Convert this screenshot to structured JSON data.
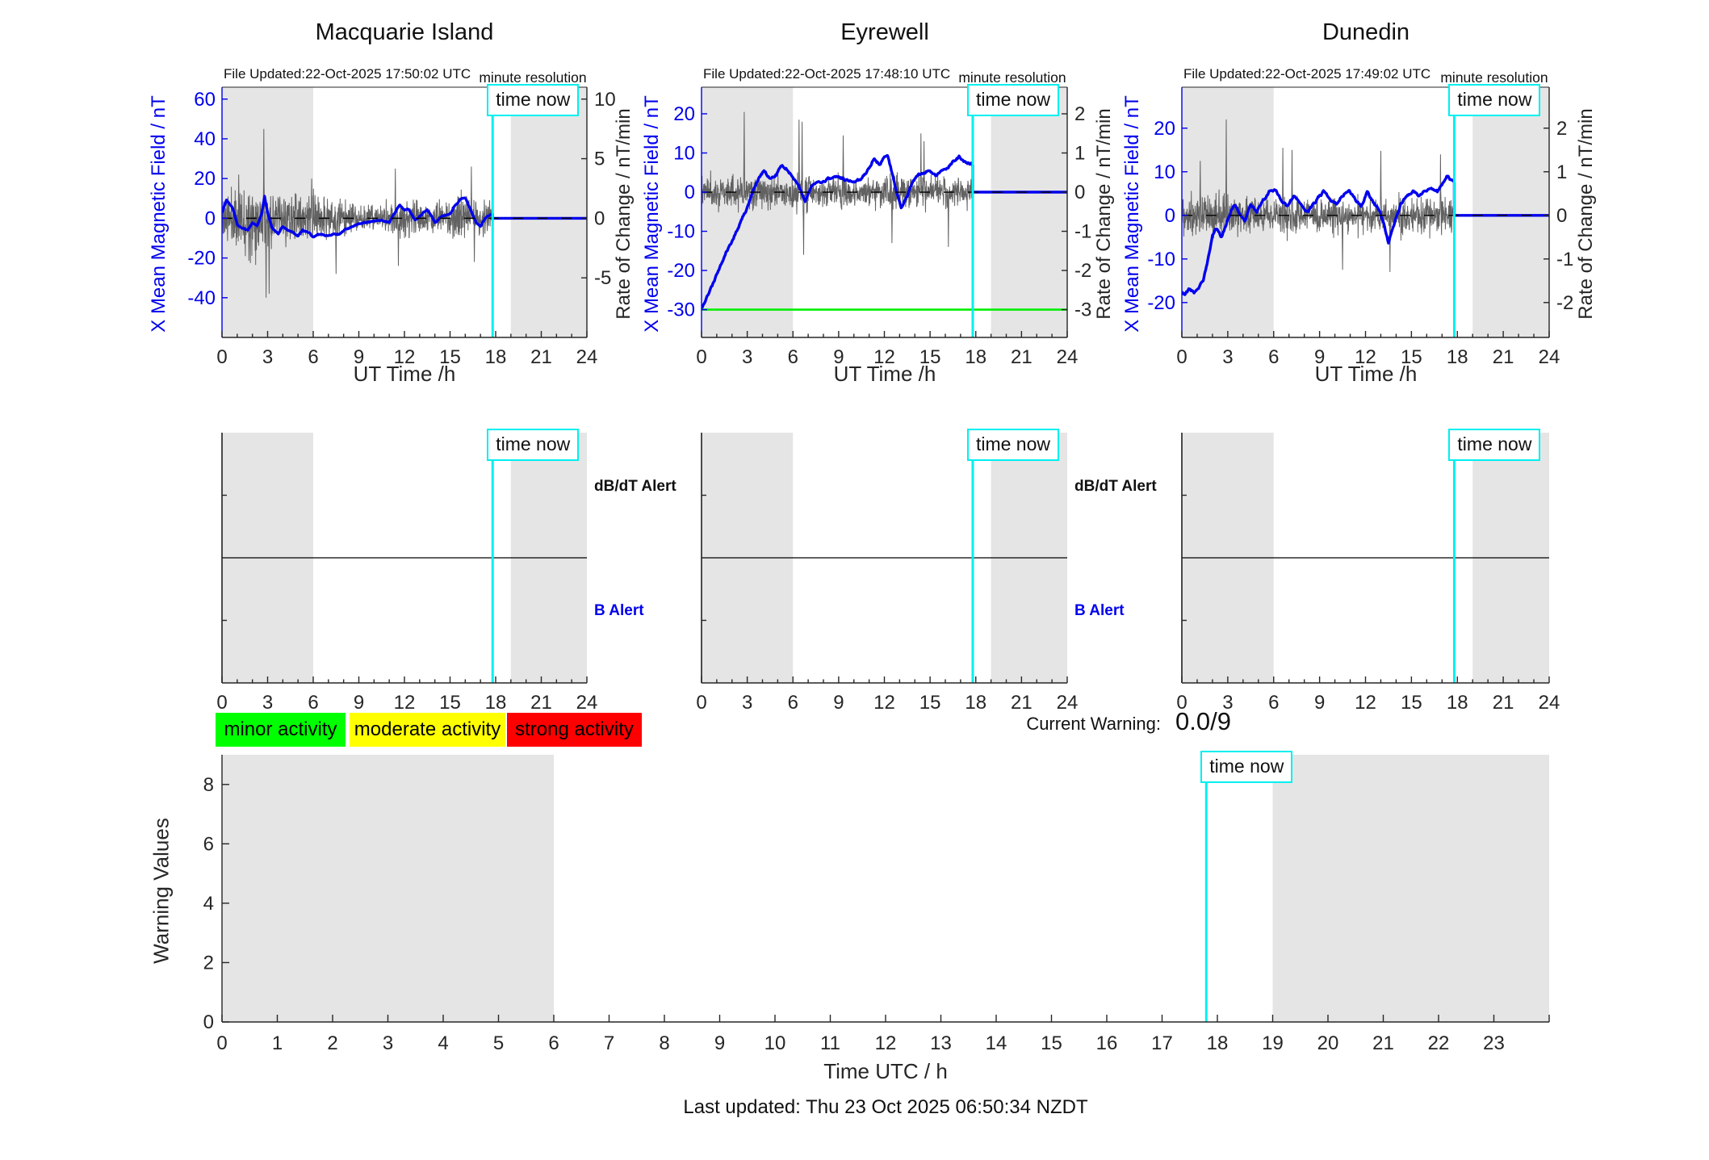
{
  "page": {
    "time_now_label": "time now",
    "resolution_note": "minute resolution",
    "current_warning_label": "Current Warning:",
    "current_warning_value": "0.0/9",
    "last_updated": "Last updated: Thu 23 Oct 2025 06:50:34 NZDT",
    "time_now_hours": 17.8
  },
  "alerts": {
    "db_dt_label": "dB/dT Alert",
    "b_label": "B Alert"
  },
  "legend": {
    "items": [
      {
        "label": "minor activity",
        "color": "#00ff00"
      },
      {
        "label": "moderate activity",
        "color": "#ffff00"
      },
      {
        "label": "strong activity",
        "color": "#ff0000"
      }
    ]
  },
  "colors": {
    "mean_field_line": "#0000ee",
    "rate_of_change_line": "#5a5a5a",
    "time_now_line": "#00f0f0",
    "threshold_line": "#00ee00",
    "night_shading": "#e5e5e5",
    "axis": "#262626"
  },
  "chart_data": [
    {
      "type": "line",
      "title": "Macquarie Island",
      "subtitle": "File Updated:22-Oct-2025 17:50:02 UTC",
      "xlabel": "UT Time /h",
      "ylabel_left": "X Mean Magnetic Field / nT",
      "ylabel_right": "Rate of Change / nT/min",
      "xlim": [
        0,
        24
      ],
      "xticks": [
        0,
        3,
        6,
        9,
        12,
        15,
        18,
        21,
        24
      ],
      "ylim_left": [
        -60,
        66
      ],
      "yticks_left": [
        -40,
        -20,
        0,
        20,
        40,
        60
      ],
      "ylim_right": [
        -10,
        11
      ],
      "yticks_right": [
        -5,
        0,
        5,
        10
      ],
      "night_shading_hours": [
        [
          0,
          6
        ],
        [
          19,
          24
        ]
      ],
      "time_now": 17.8,
      "zero_dashed_line": 0,
      "series": [
        {
          "name": "X mean magnetic field",
          "axis": "left",
          "x": [
            0,
            0.3,
            0.7,
            1,
            1.3,
            1.7,
            2,
            2.3,
            2.6,
            2.8,
            3,
            3.3,
            3.7,
            4,
            4.3,
            4.7,
            5,
            5.3,
            5.7,
            6,
            6.3,
            6.7,
            7,
            7.3,
            7.7,
            8,
            8.5,
            9,
            9.5,
            10,
            10.5,
            11,
            11.3,
            11.7,
            12,
            12.3,
            12.7,
            13,
            13.5,
            14,
            14.5,
            15,
            15.3,
            15.7,
            16,
            16.3,
            16.7,
            17,
            17.3,
            17.6,
            17.8
          ],
          "y": [
            3,
            9,
            5,
            -3,
            -5,
            -6,
            -2,
            -4,
            2,
            11,
            3,
            -5,
            -7.5,
            -4,
            -6,
            -7,
            -9,
            -6,
            -7,
            -9.5,
            -8,
            -8.5,
            -9,
            -8,
            -8,
            -6,
            -4.5,
            -3,
            -2,
            -1.5,
            -1,
            -2,
            2,
            6.5,
            4,
            4.5,
            -1,
            1,
            4.5,
            -2,
            1,
            2,
            6,
            9.5,
            10.5,
            5,
            -2,
            -4,
            0,
            1.5,
            2
          ],
          "future_value_after_time_now": 0
        },
        {
          "name": "rate of change (minute resolution)",
          "axis": "right",
          "noise_envelope_x": [
            0,
            1,
            2,
            3,
            4,
            5,
            6,
            7,
            8,
            9,
            10,
            11,
            12,
            13,
            14,
            15,
            16,
            17,
            17.8
          ],
          "noise_envelope_nT": [
            22,
            26,
            32,
            26,
            22,
            22,
            22,
            20,
            16,
            13,
            12,
            16,
            20,
            15,
            14,
            15,
            20,
            16,
            14
          ],
          "spikes_nT": [
            {
              "x": 1.1,
              "y": 22
            },
            {
              "x": 2.75,
              "y": 45
            },
            {
              "x": 2.9,
              "y": -40
            },
            {
              "x": 3.1,
              "y": -38
            },
            {
              "x": 5.9,
              "y": 20
            },
            {
              "x": 7.5,
              "y": -28
            },
            {
              "x": 11.4,
              "y": 25
            },
            {
              "x": 11.6,
              "y": -24
            },
            {
              "x": 16.4,
              "y": 26
            },
            {
              "x": 16.6,
              "y": -22
            }
          ]
        }
      ]
    },
    {
      "type": "line",
      "title": "Eyrewell",
      "subtitle": "File Updated:22-Oct-2025 17:48:10 UTC",
      "xlabel": "UT Time /h",
      "ylabel_left": "X Mean Magnetic Field / nT",
      "ylabel_right": "Rate of Change / nT/min",
      "xlim": [
        0,
        24
      ],
      "xticks": [
        0,
        3,
        6,
        9,
        12,
        15,
        18,
        21,
        24
      ],
      "ylim_left": [
        -37.1,
        26.8
      ],
      "yticks_left": [
        -30,
        -20,
        -10,
        0,
        10,
        20
      ],
      "ylim_right": [
        -3.71,
        2.68
      ],
      "yticks_right": [
        -3,
        -2,
        -1,
        0,
        1,
        2
      ],
      "night_shading_hours": [
        [
          0,
          6
        ],
        [
          19,
          24
        ]
      ],
      "time_now": 17.8,
      "zero_dashed_line": 0,
      "threshold_line": {
        "y_left": -30
      },
      "series": [
        {
          "name": "X mean magnetic field",
          "axis": "left",
          "x": [
            0,
            0.4,
            0.8,
            1.2,
            1.6,
            2,
            2.4,
            2.7,
            3,
            3.4,
            3.8,
            4.1,
            4.5,
            4.9,
            5.3,
            5.7,
            6.2,
            6.5,
            6.8,
            7.2,
            7.6,
            8,
            8.5,
            9,
            9.5,
            10,
            10.5,
            11,
            11.3,
            11.7,
            12,
            12.2,
            12.5,
            12.8,
            13.1,
            13.5,
            13.8,
            14.2,
            14.6,
            15,
            15.4,
            15.8,
            16.2,
            16.6,
            16.9,
            17.2,
            17.5,
            17.8
          ],
          "y": [
            -29.8,
            -26.5,
            -23,
            -19,
            -15.5,
            -12.5,
            -9,
            -6.5,
            -4,
            0.5,
            4,
            5.4,
            3.5,
            4.5,
            6.9,
            5.5,
            2.5,
            0.5,
            -2.3,
            1.5,
            2.5,
            3,
            3.5,
            4,
            3,
            2.5,
            3.5,
            6,
            8.5,
            7,
            9,
            9.5,
            5,
            0,
            -3.7,
            -1,
            2,
            4.5,
            5,
            5.5,
            4,
            5.5,
            6.5,
            8,
            9.1,
            8,
            7.5,
            7
          ],
          "future_value_after_time_now": 0
        },
        {
          "name": "rate of change (minute resolution)",
          "axis": "right",
          "noise_envelope_x": [
            0,
            1,
            2,
            3,
            4,
            5,
            6,
            7,
            8,
            9,
            10,
            11,
            12,
            13,
            14,
            15,
            16,
            17,
            17.8
          ],
          "noise_envelope_nT": [
            8,
            8,
            9,
            8,
            7,
            7,
            9,
            8,
            7,
            7,
            6.5,
            6.5,
            7,
            7,
            7.5,
            7,
            7.5,
            7.5,
            7.5
          ],
          "spikes_nT": [
            {
              "x": 2.8,
              "y": 20.5
            },
            {
              "x": 6.4,
              "y": 18.5
            },
            {
              "x": 6.6,
              "y": 18
            },
            {
              "x": 6.7,
              "y": -16
            },
            {
              "x": 9.3,
              "y": 14.5
            },
            {
              "x": 12.5,
              "y": -13
            },
            {
              "x": 14.4,
              "y": 15
            },
            {
              "x": 14.6,
              "y": 13
            },
            {
              "x": 16.2,
              "y": -14
            }
          ]
        }
      ]
    },
    {
      "type": "line",
      "title": "Dunedin",
      "subtitle": "File Updated:22-Oct-2025 17:49:02 UTC",
      "xlabel": "UT Time /h",
      "ylabel_left": "X Mean Magnetic Field / nT",
      "ylabel_right": "Rate of Change / nT/min",
      "xlim": [
        0,
        24
      ],
      "xticks": [
        0,
        3,
        6,
        9,
        12,
        15,
        18,
        21,
        24
      ],
      "ylim_left": [
        -28,
        29.4
      ],
      "yticks_left": [
        -20,
        -10,
        0,
        10,
        20
      ],
      "ylim_right": [
        -2.8,
        2.94
      ],
      "yticks_right": [
        -2,
        -1,
        0,
        1,
        2
      ],
      "night_shading_hours": [
        [
          0,
          6
        ],
        [
          19,
          24
        ]
      ],
      "time_now": 17.8,
      "zero_dashed_line": 0,
      "series": [
        {
          "name": "X mean magnetic field",
          "axis": "left",
          "x": [
            0,
            0.2,
            0.5,
            0.8,
            1.1,
            1.4,
            1.7,
            2,
            2.3,
            2.6,
            2.9,
            3.2,
            3.5,
            3.8,
            4.1,
            4.5,
            4.9,
            5.3,
            5.7,
            6.1,
            6.5,
            6.9,
            7.3,
            7.7,
            8.1,
            8.5,
            8.9,
            9.3,
            9.7,
            10.1,
            10.5,
            10.9,
            11.3,
            11.7,
            12.1,
            12.5,
            12.9,
            13.2,
            13.5,
            13.9,
            14.3,
            14.7,
            15.1,
            15.5,
            15.9,
            16.3,
            16.7,
            17,
            17.3,
            17.6,
            17.8
          ],
          "y": [
            -17.5,
            -18.3,
            -17,
            -17.5,
            -16.5,
            -15,
            -10,
            -4.5,
            -3,
            -5,
            -2,
            1,
            2.5,
            0.5,
            -1.5,
            2.5,
            1,
            3.5,
            5.5,
            6,
            3.5,
            2,
            4.5,
            3,
            0.5,
            2,
            4,
            5.5,
            3.5,
            2.5,
            4.5,
            6,
            4,
            2,
            5.5,
            3,
            1,
            -2,
            -6.5,
            -1.5,
            2.5,
            4.5,
            5.5,
            4.5,
            5.5,
            6.5,
            5.5,
            7,
            9,
            8,
            7.5
          ],
          "future_value_after_time_now": 0
        },
        {
          "name": "rate of change (minute resolution)",
          "axis": "right",
          "noise_envelope_x": [
            0,
            1,
            2,
            3,
            4,
            5,
            6,
            7,
            8,
            9,
            10,
            11,
            12,
            13,
            14,
            15,
            16,
            17,
            17.8
          ],
          "noise_envelope_nT": [
            9,
            8,
            9,
            8,
            7.5,
            7.5,
            9,
            9,
            7.5,
            7.5,
            7,
            7,
            7.5,
            7,
            7.5,
            7,
            8,
            8,
            8
          ],
          "spikes_nT": [
            {
              "x": 1.2,
              "y": 12.5
            },
            {
              "x": 2.9,
              "y": 22
            },
            {
              "x": 6.6,
              "y": 15.5
            },
            {
              "x": 7.2,
              "y": 15
            },
            {
              "x": 10.5,
              "y": -12.5
            },
            {
              "x": 13.0,
              "y": 14.8
            },
            {
              "x": 13.6,
              "y": -13
            },
            {
              "x": 16.9,
              "y": 14
            }
          ]
        }
      ]
    },
    {
      "type": "line",
      "panel": "alert-timeline",
      "station": "Macquarie Island",
      "xlim": [
        0,
        24
      ],
      "xticks": [
        0,
        3,
        6,
        9,
        12,
        15,
        18,
        21,
        24
      ],
      "lanes": [
        {
          "label": "dB/dT Alert",
          "position": 0.75
        },
        {
          "label": "B Alert",
          "position": 0.25
        }
      ],
      "divider_fraction": 0.5,
      "night_shading_hours": [
        [
          0,
          6
        ],
        [
          19,
          24
        ]
      ],
      "time_now": 17.8,
      "series": []
    },
    {
      "type": "line",
      "panel": "alert-timeline",
      "station": "Eyrewell",
      "xlim": [
        0,
        24
      ],
      "xticks": [
        0,
        3,
        6,
        9,
        12,
        15,
        18,
        21,
        24
      ],
      "lanes": [
        {
          "label": "dB/dT Alert",
          "position": 0.75
        },
        {
          "label": "B Alert",
          "position": 0.25
        }
      ],
      "divider_fraction": 0.5,
      "night_shading_hours": [
        [
          0,
          6
        ],
        [
          19,
          24
        ]
      ],
      "time_now": 17.8,
      "series": []
    },
    {
      "type": "line",
      "panel": "alert-timeline",
      "station": "Dunedin",
      "xlim": [
        0,
        24
      ],
      "xticks": [
        0,
        3,
        6,
        9,
        12,
        15,
        18,
        21,
        24
      ],
      "lanes": [
        {
          "label": "dB/dT Alert",
          "position": 0.75
        },
        {
          "label": "B Alert",
          "position": 0.25
        }
      ],
      "divider_fraction": 0.5,
      "night_shading_hours": [
        [
          0,
          6
        ],
        [
          19,
          24
        ]
      ],
      "time_now": 17.8,
      "series": []
    },
    {
      "type": "line",
      "panel": "warning-values",
      "ylabel": "Warning Values",
      "xlabel": "Time UTC / h",
      "xlim": [
        0,
        24
      ],
      "xticks": [
        0,
        1,
        2,
        3,
        4,
        5,
        6,
        7,
        8,
        9,
        10,
        11,
        12,
        13,
        14,
        15,
        16,
        17,
        18,
        19,
        20,
        21,
        22,
        23
      ],
      "ylim": [
        0,
        9
      ],
      "yticks": [
        0,
        2,
        4,
        6,
        8
      ],
      "night_shading_hours": [
        [
          0,
          6
        ],
        [
          19,
          24
        ]
      ],
      "time_now": 17.8,
      "current_warning": "0.0/9",
      "series": []
    }
  ]
}
